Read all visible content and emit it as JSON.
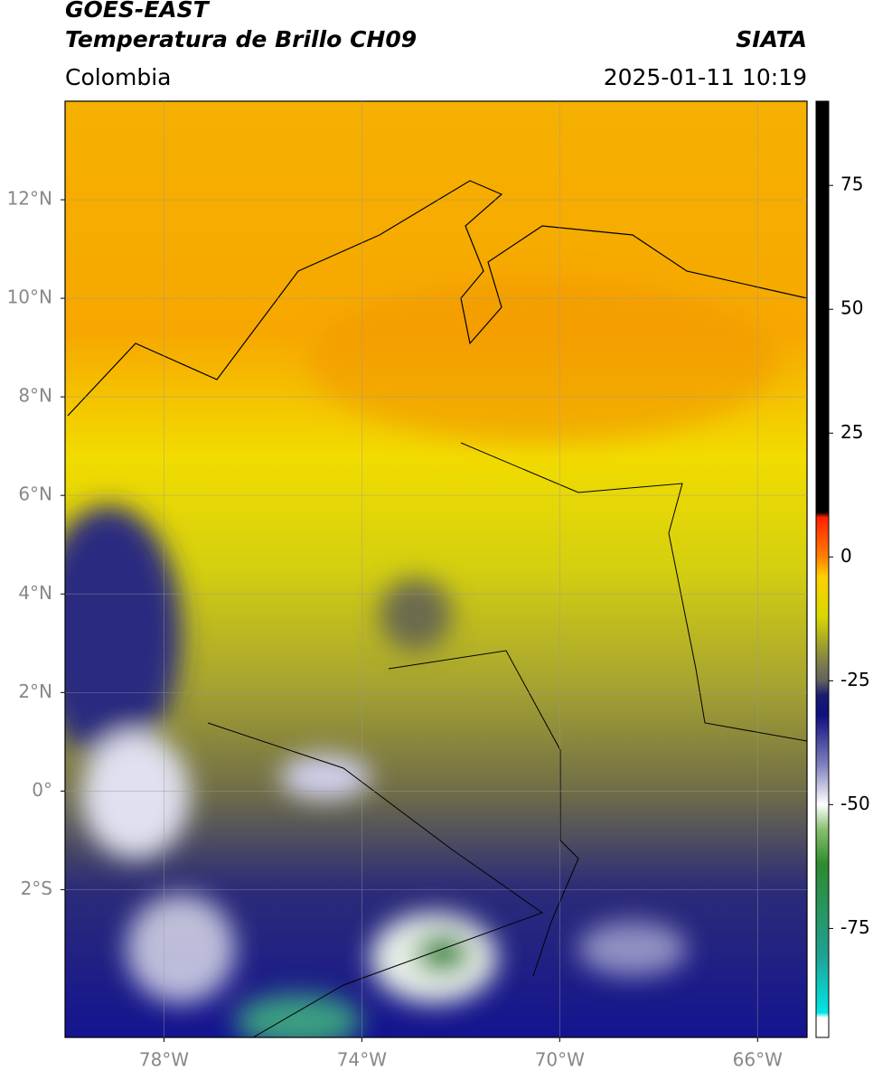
{
  "header": {
    "title": "GOES-EAST",
    "subtitle": "Temperatura de Brillo CH09",
    "source": "SIATA",
    "region": "Colombia",
    "datetime": "2025-01-11 10:19"
  },
  "map": {
    "xlim": [
      -80,
      -65
    ],
    "ylim": [
      -5,
      14
    ],
    "xticks": [
      {
        "value": -78,
        "label": "78°W"
      },
      {
        "value": -74,
        "label": "74°W"
      },
      {
        "value": -70,
        "label": "70°W"
      },
      {
        "value": -66,
        "label": "66°W"
      }
    ],
    "yticks": [
      {
        "value": 12,
        "label": "12°N"
      },
      {
        "value": 10,
        "label": "10°N"
      },
      {
        "value": 8,
        "label": "8°N"
      },
      {
        "value": 6,
        "label": "6°N"
      },
      {
        "value": 4,
        "label": "4°N"
      },
      {
        "value": 2,
        "label": "2°N"
      },
      {
        "value": 0,
        "label": "0°"
      },
      {
        "value": -2,
        "label": "2°S"
      }
    ],
    "grid": true
  },
  "colorbar": {
    "ylim": [
      -97,
      92
    ],
    "yticks": [
      75,
      50,
      25,
      0,
      -25,
      -50,
      -75
    ],
    "stops": [
      {
        "value": -97,
        "color": "#ffffff"
      },
      {
        "value": -93,
        "color": "#ffffff"
      },
      {
        "value": -92,
        "color": "#00e5e5"
      },
      {
        "value": -80,
        "color": "#20a090"
      },
      {
        "value": -62,
        "color": "#2e8b2e"
      },
      {
        "value": -55,
        "color": "#88c070"
      },
      {
        "value": -50,
        "color": "#ffffff"
      },
      {
        "value": -42,
        "color": "#8080c0"
      },
      {
        "value": -32,
        "color": "#101080"
      },
      {
        "value": -28,
        "color": "#1a1a70"
      },
      {
        "value": -25,
        "color": "#606060"
      },
      {
        "value": -20,
        "color": "#8a8a40"
      },
      {
        "value": -12,
        "color": "#d8d800"
      },
      {
        "value": -4,
        "color": "#ffd000"
      },
      {
        "value": 0,
        "color": "#ff8000"
      },
      {
        "value": 8,
        "color": "#ff2000"
      },
      {
        "value": 9,
        "color": "#000000"
      },
      {
        "value": 92,
        "color": "#000000"
      }
    ]
  }
}
